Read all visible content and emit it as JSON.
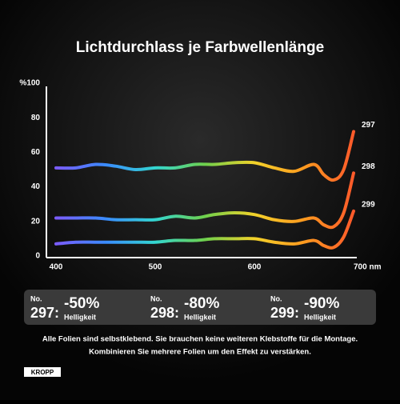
{
  "chart_data": {
    "type": "line",
    "title": "Lichtdurchlass je Farbwellenlänge",
    "x": [
      400,
      420,
      440,
      460,
      480,
      500,
      520,
      540,
      560,
      580,
      600,
      620,
      640,
      660,
      670,
      680,
      690,
      700
    ],
    "series": [
      {
        "name": "297",
        "values": [
          51,
          51,
          53,
          52,
          50,
          51,
          51,
          53,
          53,
          54,
          54,
          51,
          49,
          53,
          47,
          44,
          50,
          72
        ]
      },
      {
        "name": "298",
        "values": [
          22,
          22,
          22,
          21,
          21,
          21,
          23,
          22,
          24,
          25,
          24,
          21,
          20,
          22,
          18,
          17,
          25,
          48
        ]
      },
      {
        "name": "299",
        "values": [
          7,
          8,
          8,
          8,
          8,
          8,
          9,
          9,
          10,
          10,
          10,
          8,
          7,
          9,
          6,
          5,
          11,
          26
        ]
      }
    ],
    "gradient": [
      "#7b5cff",
      "#3a8bff",
      "#33d6d0",
      "#6ed04c",
      "#f2d22a",
      "#ff9a1f",
      "#ff5a2a"
    ],
    "xlim": [
      400,
      700
    ],
    "xticks": [
      400,
      500,
      600,
      {
        "value": 700,
        "label": "700 nm"
      }
    ],
    "ylim": [
      0,
      100
    ],
    "yticks": [
      0,
      20,
      40,
      60,
      80,
      {
        "value": 100,
        "label": "%100"
      }
    ]
  },
  "panels": [
    {
      "label": "No.",
      "number": "297:",
      "value": "-50%",
      "unit": "Helligkeit"
    },
    {
      "label": "No.",
      "number": "298:",
      "value": "-80%",
      "unit": "Helligkeit"
    },
    {
      "label": "No.",
      "number": "299:",
      "value": "-90%",
      "unit": "Helligkeit"
    }
  ],
  "footnote": [
    "Alle Folien sind selbstklebend. Sie brauchen keine weiteren Klebstoffe für die Montage.",
    "Kombinieren Sie mehrere Folien um den Effekt zu verstärken."
  ],
  "logo": "KROPP"
}
